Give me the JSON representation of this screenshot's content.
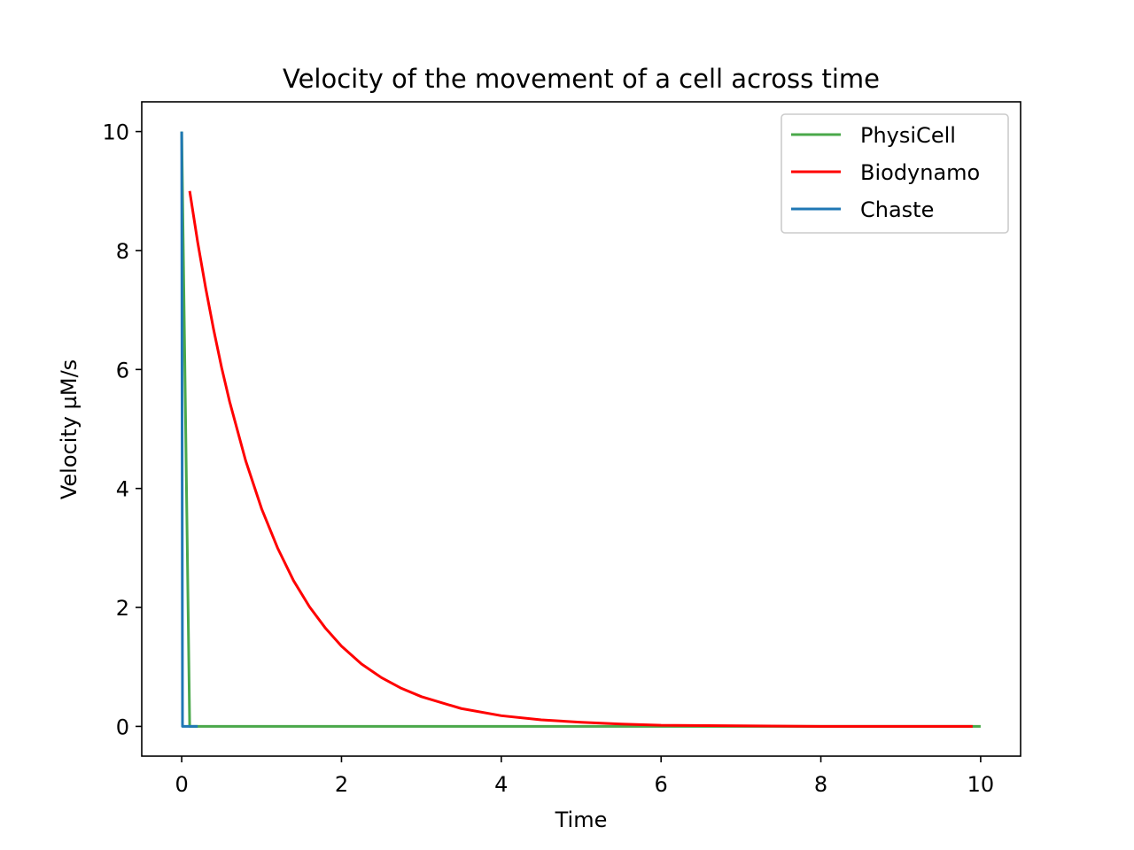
{
  "chart_data": {
    "type": "line",
    "title": "Velocity of the movement of a cell across time",
    "xlabel": "Time",
    "ylabel": "Velocity µM/s",
    "xlim": [
      -0.5,
      10.5
    ],
    "ylim": [
      -0.5,
      10.5
    ],
    "xticks": [
      0,
      2,
      4,
      6,
      8,
      10
    ],
    "yticks": [
      0,
      2,
      4,
      6,
      8,
      10
    ],
    "grid": false,
    "legend_position": "top-right",
    "series": [
      {
        "name": "PhysiCell",
        "color": "#4aa84a",
        "x": [
          0,
          0.1,
          10
        ],
        "y": [
          10,
          0,
          0
        ]
      },
      {
        "name": "Biodynamo",
        "color": "#ff0000",
        "x": [
          0.1,
          0.2,
          0.3,
          0.4,
          0.5,
          0.6,
          0.8,
          1.0,
          1.2,
          1.4,
          1.6,
          1.8,
          2.0,
          2.25,
          2.5,
          2.75,
          3.0,
          3.5,
          4.0,
          4.5,
          5.0,
          5.5,
          6.0,
          7.0,
          8.0,
          9.0,
          9.9
        ],
        "y": [
          9.0,
          8.14,
          7.37,
          6.67,
          6.03,
          5.46,
          4.47,
          3.66,
          3.0,
          2.45,
          2.01,
          1.65,
          1.35,
          1.05,
          0.82,
          0.64,
          0.5,
          0.3,
          0.18,
          0.11,
          0.07,
          0.04,
          0.02,
          0.01,
          0.0,
          0.0,
          0.0
        ]
      },
      {
        "name": "Chaste",
        "color": "#1f77b4",
        "x": [
          0,
          0.01,
          0.2
        ],
        "y": [
          10,
          0,
          0
        ]
      }
    ]
  }
}
